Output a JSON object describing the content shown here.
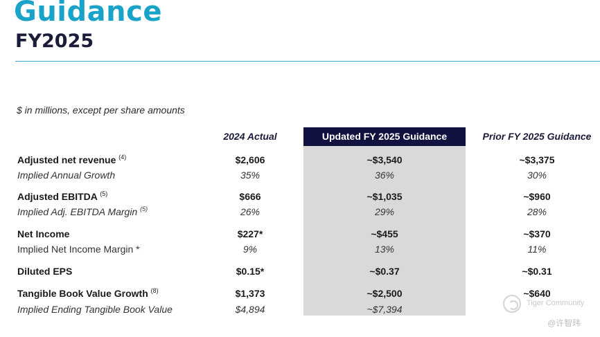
{
  "header": {
    "title": "Guidance",
    "subtitle": "FY2025"
  },
  "note": "$ in millions, except per share amounts",
  "columns": {
    "actual": "2024 Actual",
    "updated": "Updated FY 2025 Guidance",
    "prior": "Prior FY 2025 Guidance"
  },
  "rows": [
    {
      "label": "Adjusted net revenue",
      "sup": "(4)",
      "actual": "$2,606",
      "updated": "~$3,540",
      "prior": "~$3,375"
    },
    {
      "label": "Implied Annual Growth",
      "sup": "",
      "actual": "35%",
      "updated": "36%",
      "prior": "30%"
    },
    {
      "label": "Adjusted EBITDA",
      "sup": "(5)",
      "actual": "$666",
      "updated": "~$1,035",
      "prior": "~$960"
    },
    {
      "label": "Implied Adj. EBITDA Margin",
      "sup": "(5)",
      "actual": "26%",
      "updated": "29%",
      "prior": "28%"
    },
    {
      "label": "Net Income",
      "sup": "",
      "actual": "$227*",
      "updated": "~$455",
      "prior": "~$370"
    },
    {
      "label": "Implied Net Income Margin *",
      "sup": "",
      "actual": "9%",
      "updated": "13%",
      "prior": "11%"
    },
    {
      "label": "Diluted EPS",
      "sup": "",
      "actual": "$0.15*",
      "updated": "~$0.37",
      "prior": "~$0.31"
    },
    {
      "label": "Tangible Book Value Growth",
      "sup": "(8)",
      "actual": "$1,373",
      "updated": "~$2,500",
      "prior": "~$640"
    },
    {
      "label": "Implied Ending Tangible Book Value",
      "sup": "",
      "actual": "$4,894",
      "updated": "~$7,394",
      "prior": ""
    }
  ],
  "watermark": {
    "brand": "Tiger Community",
    "handle": "@许智玮"
  }
}
